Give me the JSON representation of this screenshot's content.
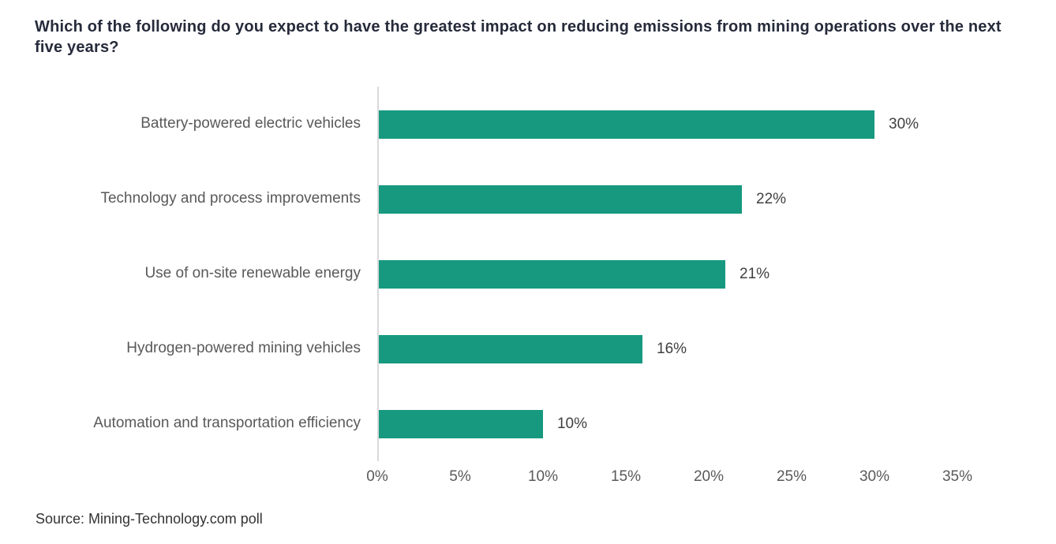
{
  "title": "Which of the following do you expect to have the greatest impact on reducing emissions from mining operations over the next five years?",
  "source": "Source: Mining-Technology.com poll",
  "chart_data": {
    "type": "bar",
    "orientation": "horizontal",
    "title": "Which of the following do you expect to have the greatest impact on reducing emissions from mining operations over the next five years?",
    "categories": [
      "Battery-powered electric vehicles",
      "Technology and process improvements",
      "Use of on-site renewable energy",
      "Hydrogen-powered mining vehicles",
      "Automation and transportation efficiency"
    ],
    "values": [
      30,
      22,
      21,
      16,
      10
    ],
    "value_labels": [
      "30%",
      "22%",
      "21%",
      "16%",
      "10%"
    ],
    "xlabel": "",
    "ylabel": "",
    "xlim": [
      0,
      35
    ],
    "x_tick_values": [
      0,
      5,
      10,
      15,
      20,
      25,
      30,
      35
    ],
    "x_tick_labels": [
      "0%",
      "5%",
      "10%",
      "15%",
      "20%",
      "25%",
      "30%",
      "35%"
    ],
    "grid": false,
    "legend": false,
    "colors": {
      "bar": "#16997F",
      "title_text": "#262B3B",
      "category_text": "#595959",
      "value_text": "#404040",
      "axis_tick_text": "#595959",
      "axis_line": "#D9D9D9",
      "source_text": "#333333",
      "background": "#FFFFFF"
    }
  }
}
